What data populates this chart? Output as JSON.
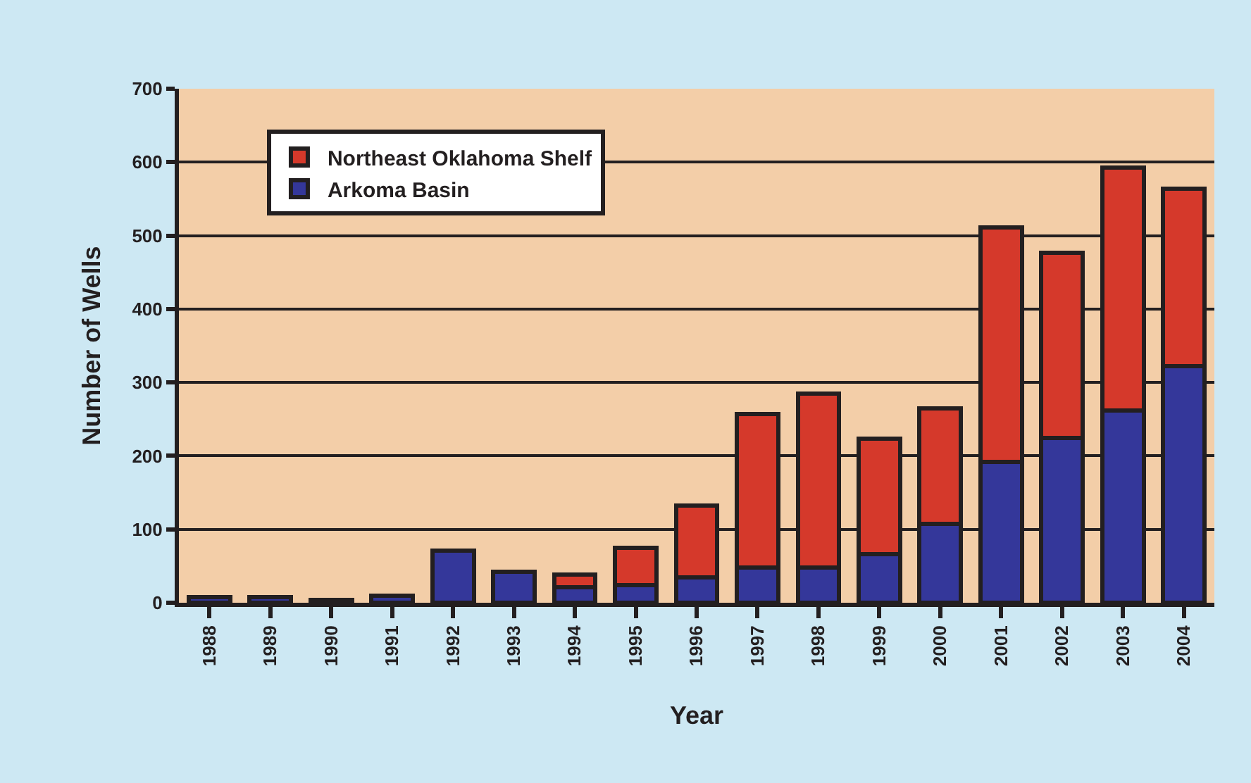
{
  "chart_data": {
    "type": "bar",
    "stacked": true,
    "xlabel": "Year",
    "ylabel": "Number of Wells",
    "categories": [
      "1988",
      "1989",
      "1990",
      "1991",
      "1992",
      "1993",
      "1994",
      "1995",
      "1996",
      "1997",
      "1998",
      "1999",
      "2000",
      "2001",
      "2002",
      "2003",
      "2004"
    ],
    "series": [
      {
        "name": "Arkoma Basin",
        "color": "#34379a",
        "values": [
          8,
          8,
          4,
          10,
          71,
          42,
          21,
          24,
          35,
          48,
          48,
          66,
          107,
          192,
          224,
          262,
          322
        ]
      },
      {
        "name": "Northeast Oklahoma Shelf",
        "color": "#d5392b",
        "values": [
          null,
          null,
          null,
          null,
          null,
          null,
          17,
          51,
          97,
          209,
          237,
          157,
          158,
          319,
          253,
          331,
          242
        ]
      }
    ],
    "ylim": [
      0,
      700
    ],
    "yticks": [
      0,
      100,
      200,
      300,
      400,
      500,
      600,
      700
    ],
    "grid": "y",
    "legend": "top left"
  }
}
